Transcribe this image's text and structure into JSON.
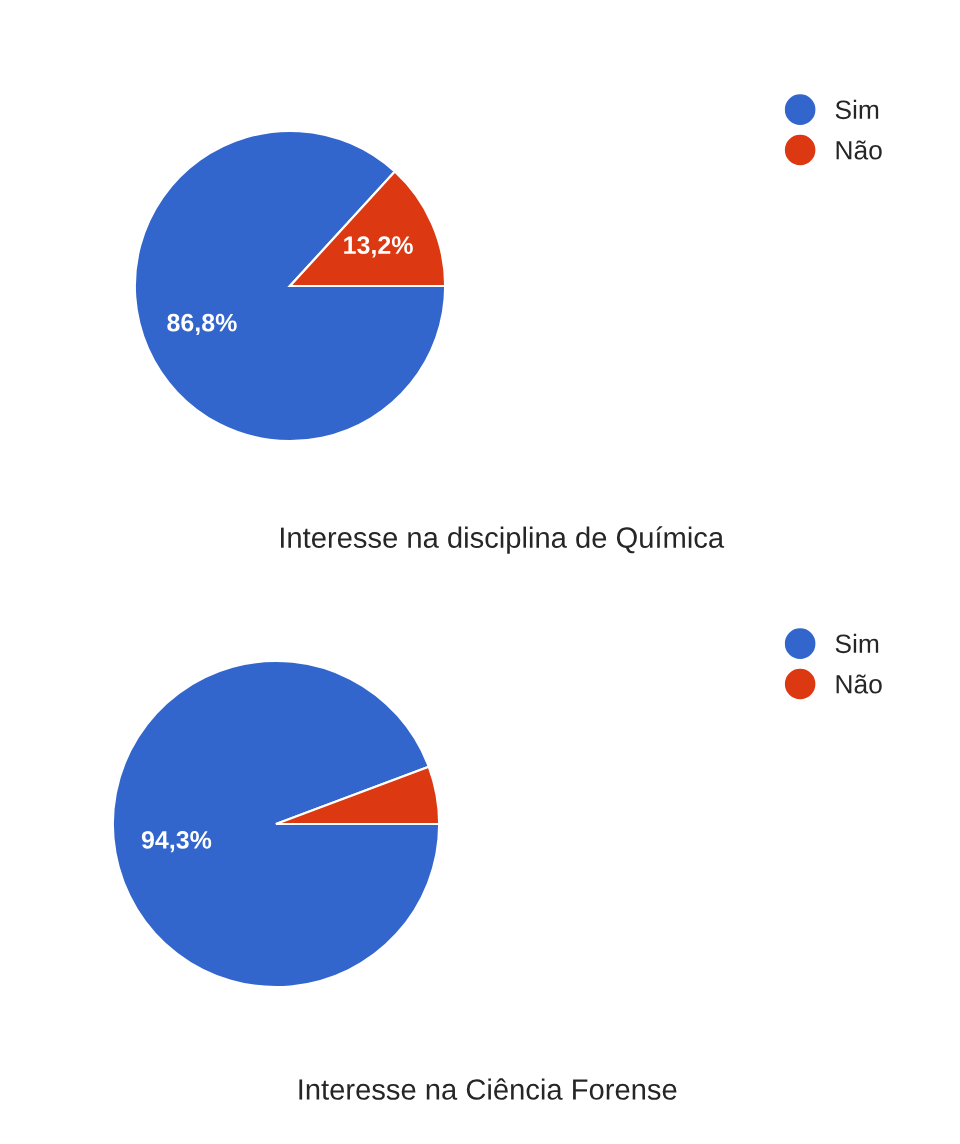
{
  "chart_data": [
    {
      "type": "pie",
      "title": "Interesse na disciplina de Química",
      "categories": [
        "Sim",
        "Não"
      ],
      "values": [
        86.8,
        13.2
      ],
      "colors": [
        "#3366cc",
        "#dc3912"
      ],
      "value_labels": [
        "86,8%",
        "13,2%"
      ],
      "legend": "top right"
    },
    {
      "type": "pie",
      "title": "Interesse na Ciência Forense",
      "categories": [
        "Sim",
        "Não"
      ],
      "values": [
        94.3,
        5.7
      ],
      "colors": [
        "#3366cc",
        "#dc3912"
      ],
      "value_labels": [
        "94,3%",
        null
      ],
      "legend": "top right"
    }
  ]
}
